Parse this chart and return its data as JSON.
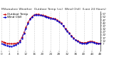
{
  "title": "Milwaukee Weather  Outdoor Temp (vs)  Wind Chill  (Last 24 Hours)",
  "background_color": "#ffffff",
  "grid_color": "#888888",
  "ylim": [
    -5,
    62
  ],
  "ytick_labels": [
    "57",
    "52",
    "47",
    "42",
    "37",
    "32",
    "27",
    "22",
    "17",
    "12",
    "7"
  ],
  "ytick_vals": [
    57,
    52,
    47,
    42,
    37,
    32,
    27,
    22,
    17,
    12,
    7
  ],
  "n_points": 49,
  "x_hours": [
    0,
    1,
    2,
    3,
    4,
    5,
    6,
    7,
    8,
    9,
    10,
    11,
    12,
    13,
    14,
    15,
    16,
    17,
    18,
    19,
    20,
    21,
    22,
    23,
    24,
    25,
    26,
    27,
    28,
    29,
    30,
    31,
    32,
    33,
    34,
    35,
    36,
    37,
    38,
    39,
    40,
    41,
    42,
    43,
    44,
    45,
    46,
    47,
    48
  ],
  "temp": [
    11,
    10,
    9,
    8,
    7,
    7,
    7,
    8,
    9,
    12,
    18,
    26,
    35,
    43,
    49,
    53,
    56,
    57,
    57,
    56,
    55,
    54,
    53,
    52,
    51,
    50,
    49,
    47,
    45,
    42,
    38,
    33,
    29,
    25,
    21,
    17,
    14,
    12,
    10,
    9,
    9,
    9,
    10,
    11,
    11,
    10,
    9,
    8,
    8
  ],
  "wind_chill": [
    7,
    6,
    5,
    4,
    3,
    3,
    4,
    5,
    7,
    10,
    16,
    24,
    33,
    41,
    48,
    52,
    55,
    56,
    56,
    55,
    54,
    53,
    52,
    51,
    50,
    49,
    48,
    46,
    44,
    41,
    37,
    32,
    28,
    24,
    20,
    16,
    13,
    11,
    9,
    8,
    8,
    8,
    9,
    10,
    10,
    9,
    8,
    7,
    7
  ],
  "temp_color": "#cc0000",
  "wind_chill_color": "#0000cc",
  "temp_linewidth": 0.6,
  "wind_chill_linewidth": 0.6,
  "markersize": 1.5,
  "grid_xtick_every": 4,
  "title_fontsize": 3.2,
  "tick_fontsize": 3.0,
  "legend_fontsize": 3.0,
  "xtick_labels": [
    "0",
    "4",
    "8",
    "12",
    "16",
    "20",
    "24",
    "28",
    "32",
    "36",
    "40",
    "44",
    "48"
  ]
}
